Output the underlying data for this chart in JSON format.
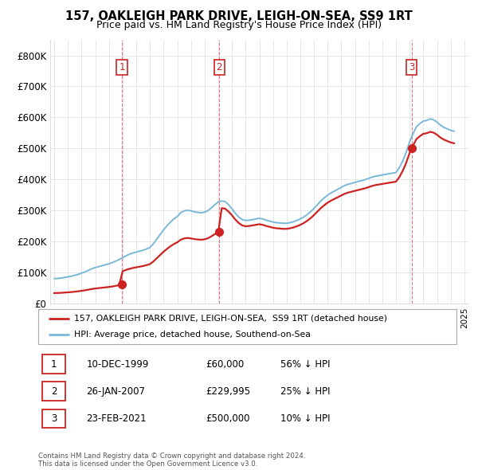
{
  "title": "157, OAKLEIGH PARK DRIVE, LEIGH-ON-SEA, SS9 1RT",
  "subtitle": "Price paid vs. HM Land Registry's House Price Index (HPI)",
  "ylim": [
    0,
    850000
  ],
  "yticks": [
    0,
    100000,
    200000,
    300000,
    400000,
    500000,
    600000,
    700000,
    800000
  ],
  "ytick_labels": [
    "£0",
    "£100K",
    "£200K",
    "£300K",
    "£400K",
    "£500K",
    "£600K",
    "£700K",
    "£800K"
  ],
  "hpi_color": "#7ab8d9",
  "sale_color": "#cc2222",
  "grid_color": "#dddddd",
  "sale_points": [
    {
      "year": 1999.95,
      "price": 60000,
      "label": "1"
    },
    {
      "year": 2007.07,
      "price": 229995,
      "label": "2"
    },
    {
      "year": 2021.15,
      "price": 500000,
      "label": "3"
    }
  ],
  "sale_labels_info": [
    {
      "label": "1",
      "date": "10-DEC-1999",
      "price": "£60,000",
      "hpi_diff": "56% ↓ HPI"
    },
    {
      "label": "2",
      "date": "26-JAN-2007",
      "price": "£229,995",
      "hpi_diff": "25% ↓ HPI"
    },
    {
      "label": "3",
      "date": "23-FEB-2021",
      "price": "£500,000",
      "hpi_diff": "10% ↓ HPI"
    }
  ],
  "legend_entries": [
    "157, OAKLEIGH PARK DRIVE, LEIGH-ON-SEA,  SS9 1RT (detached house)",
    "HPI: Average price, detached house, Southend-on-Sea"
  ],
  "footer_text": "Contains HM Land Registry data © Crown copyright and database right 2024.\nThis data is licensed under the Open Government Licence v3.0.",
  "hpi_years": [
    1995.0,
    1995.25,
    1995.5,
    1995.75,
    1996.0,
    1996.25,
    1996.5,
    1996.75,
    1997.0,
    1997.25,
    1997.5,
    1997.75,
    1998.0,
    1998.25,
    1998.5,
    1998.75,
    1999.0,
    1999.25,
    1999.5,
    1999.75,
    2000.0,
    2000.25,
    2000.5,
    2000.75,
    2001.0,
    2001.25,
    2001.5,
    2001.75,
    2002.0,
    2002.25,
    2002.5,
    2002.75,
    2003.0,
    2003.25,
    2003.5,
    2003.75,
    2004.0,
    2004.25,
    2004.5,
    2004.75,
    2005.0,
    2005.25,
    2005.5,
    2005.75,
    2006.0,
    2006.25,
    2006.5,
    2006.75,
    2007.0,
    2007.25,
    2007.5,
    2007.75,
    2008.0,
    2008.25,
    2008.5,
    2008.75,
    2009.0,
    2009.25,
    2009.5,
    2009.75,
    2010.0,
    2010.25,
    2010.5,
    2010.75,
    2011.0,
    2011.25,
    2011.5,
    2011.75,
    2012.0,
    2012.25,
    2012.5,
    2012.75,
    2013.0,
    2013.25,
    2013.5,
    2013.75,
    2014.0,
    2014.25,
    2014.5,
    2014.75,
    2015.0,
    2015.25,
    2015.5,
    2015.75,
    2016.0,
    2016.25,
    2016.5,
    2016.75,
    2017.0,
    2017.25,
    2017.5,
    2017.75,
    2018.0,
    2018.25,
    2018.5,
    2018.75,
    2019.0,
    2019.25,
    2019.5,
    2019.75,
    2020.0,
    2020.25,
    2020.5,
    2020.75,
    2021.0,
    2021.25,
    2021.5,
    2021.75,
    2022.0,
    2022.25,
    2022.5,
    2022.75,
    2023.0,
    2023.25,
    2023.5,
    2023.75,
    2024.0,
    2024.25
  ],
  "hpi_values": [
    79000,
    80000,
    81000,
    83000,
    85000,
    87000,
    90000,
    93000,
    97000,
    101000,
    106000,
    111000,
    115000,
    118000,
    121000,
    124000,
    127000,
    131000,
    136000,
    141000,
    147000,
    153000,
    158000,
    162000,
    165000,
    168000,
    171000,
    175000,
    180000,
    192000,
    207000,
    222000,
    237000,
    250000,
    262000,
    272000,
    280000,
    292000,
    298000,
    300000,
    298000,
    295000,
    293000,
    292000,
    294000,
    299000,
    308000,
    318000,
    327000,
    330000,
    328000,
    318000,
    305000,
    290000,
    278000,
    270000,
    267000,
    268000,
    270000,
    272000,
    274000,
    272000,
    268000,
    265000,
    262000,
    260000,
    259000,
    258000,
    258000,
    260000,
    263000,
    267000,
    272000,
    278000,
    286000,
    295000,
    306000,
    318000,
    330000,
    340000,
    349000,
    356000,
    362000,
    368000,
    374000,
    380000,
    384000,
    387000,
    390000,
    393000,
    396000,
    399000,
    403000,
    407000,
    410000,
    412000,
    414000,
    416000,
    418000,
    420000,
    422000,
    438000,
    460000,
    488000,
    522000,
    548000,
    570000,
    580000,
    588000,
    590000,
    595000,
    592000,
    585000,
    575000,
    568000,
    563000,
    558000,
    555000
  ],
  "xlim_start": 1994.7,
  "xlim_end": 2025.3
}
